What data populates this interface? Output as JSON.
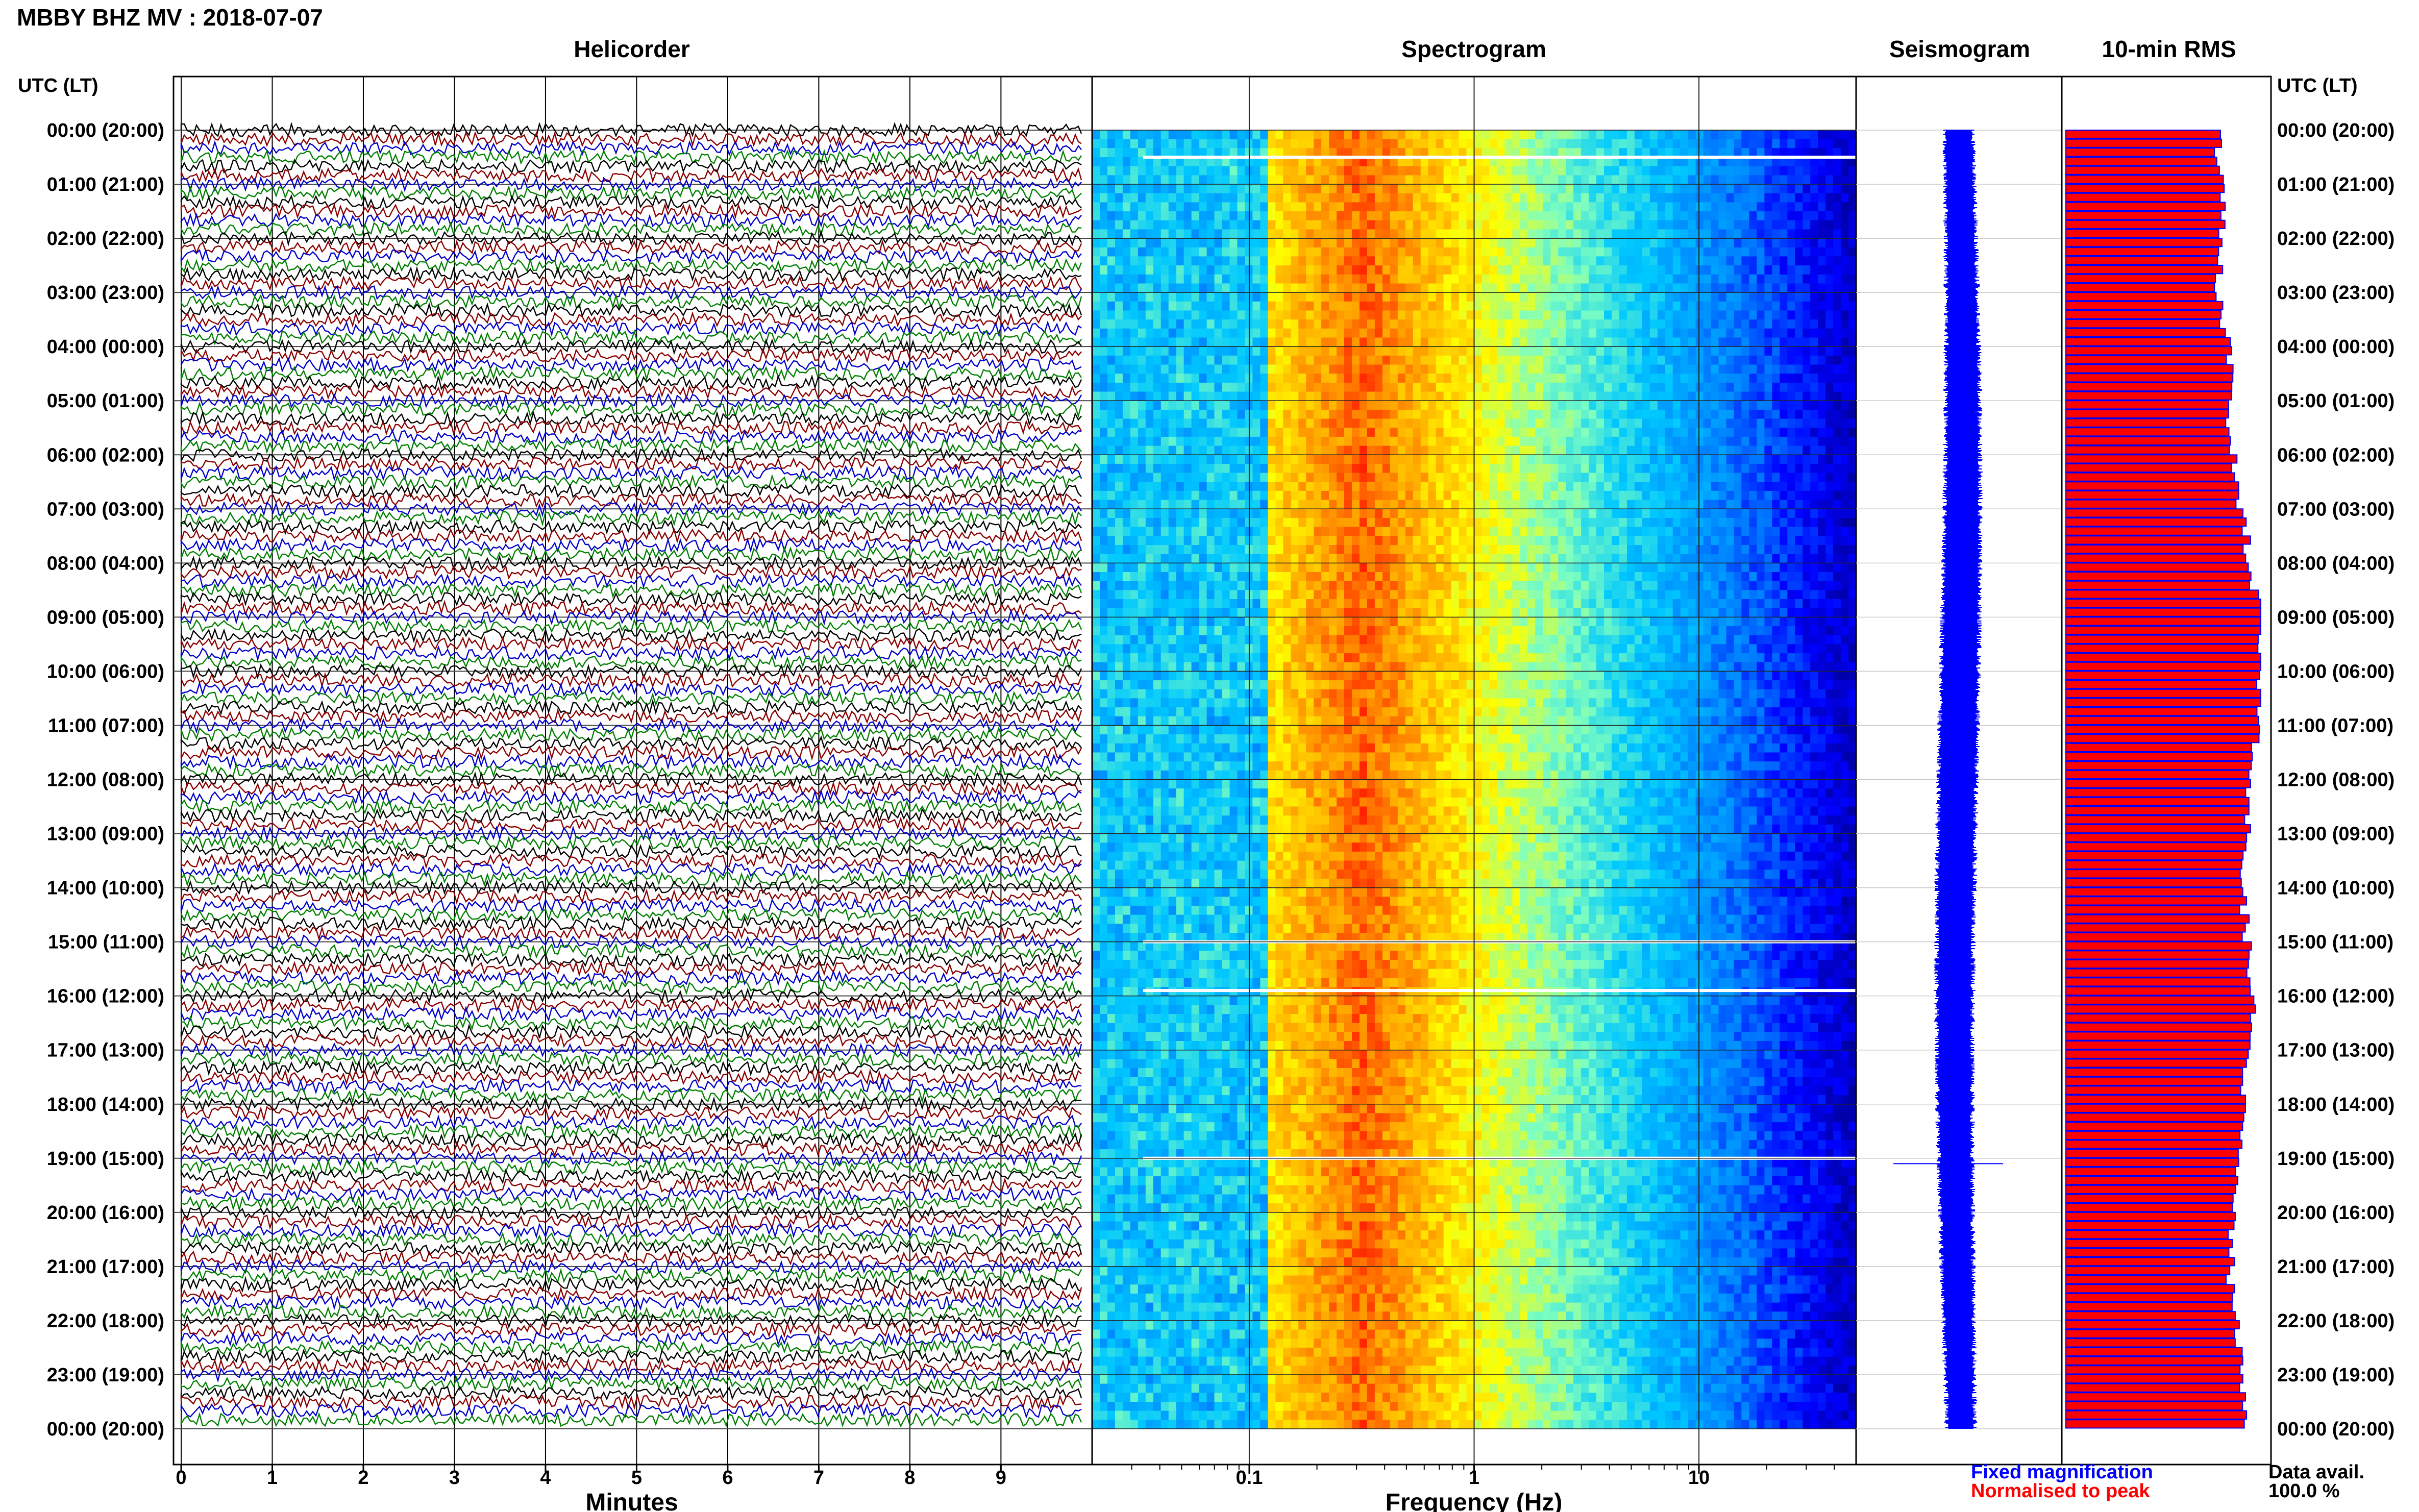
{
  "header": {
    "title": "MBBY BHZ MV : 2018-07-07"
  },
  "panel_titles": {
    "helicorder": "Helicorder",
    "spectrogram": "Spectrogram",
    "seismogram": "Seismogram",
    "rms": "10-min RMS"
  },
  "axis_titles": {
    "left": "UTC (LT)",
    "right": "UTC (LT)",
    "helicorder_x": "Minutes",
    "spectrogram_x": "Frequency (Hz)"
  },
  "legend": {
    "fixed": "Fixed magnification",
    "normalised": "Normalised to peak",
    "fixed_color": "#0000ff",
    "normalised_color": "#ff0000"
  },
  "data_avail": {
    "label": "Data avail.",
    "value": "100.0 %"
  },
  "time_labels": [
    "00:00 (20:00)",
    "01:00 (21:00)",
    "02:00 (22:00)",
    "03:00 (23:00)",
    "04:00 (00:00)",
    "05:00 (01:00)",
    "06:00 (02:00)",
    "07:00 (03:00)",
    "08:00 (04:00)",
    "09:00 (05:00)",
    "10:00 (06:00)",
    "11:00 (07:00)",
    "12:00 (08:00)",
    "13:00 (09:00)",
    "14:00 (10:00)",
    "15:00 (11:00)",
    "16:00 (12:00)",
    "17:00 (13:00)",
    "18:00 (14:00)",
    "19:00 (15:00)",
    "20:00 (16:00)",
    "21:00 (17:00)",
    "22:00 (18:00)",
    "23:00 (19:00)",
    "00:00 (20:00)"
  ],
  "colors": {
    "trace_cycle": [
      "#000000",
      "#8b0000",
      "#0000cd",
      "#008000"
    ],
    "seismogram": "#0000ff",
    "rms_fill": "#ff0000",
    "rms_edge": "#0000ff"
  },
  "chart_data": [
    {
      "type": "line",
      "name": "helicorder",
      "title": "Helicorder",
      "xlabel": "Minutes",
      "x_ticks": [
        0,
        1,
        2,
        3,
        4,
        5,
        6,
        7,
        8,
        9
      ],
      "xlim": [
        0,
        10
      ],
      "rows": 144,
      "row_minutes": 10
    },
    {
      "type": "heatmap",
      "name": "spectrogram",
      "title": "Spectrogram",
      "xlabel": "Frequency (Hz)",
      "x_scale": "log",
      "xlim": [
        0.02,
        50
      ],
      "x_ticks": [
        0.1,
        1,
        10
      ],
      "x_tick_labels": [
        "0.1",
        "1",
        "10"
      ],
      "peak_frequency_hz": 0.3,
      "colormap": [
        "#00008b",
        "#0000ff",
        "#0080ff",
        "#00c8ff",
        "#7fffbf",
        "#ffff00",
        "#ff9900",
        "#ff0000"
      ],
      "data_gaps_utc_hours": [
        0.5,
        15.0,
        15.9,
        19.0
      ]
    },
    {
      "type": "line",
      "name": "seismogram",
      "title": "Seismogram"
    },
    {
      "type": "bar",
      "name": "rms",
      "title": "10-min RMS",
      "orientation": "horizontal",
      "bar_count": 144,
      "values_hourly_relative": [
        0.78,
        0.8,
        0.79,
        0.77,
        0.85,
        0.82,
        0.86,
        0.9,
        0.95,
        1.0,
        1.0,
        0.98,
        0.95,
        0.92,
        0.9,
        0.93,
        0.96,
        0.92,
        0.9,
        0.88,
        0.86,
        0.84,
        0.87,
        0.9,
        0.92
      ]
    }
  ]
}
